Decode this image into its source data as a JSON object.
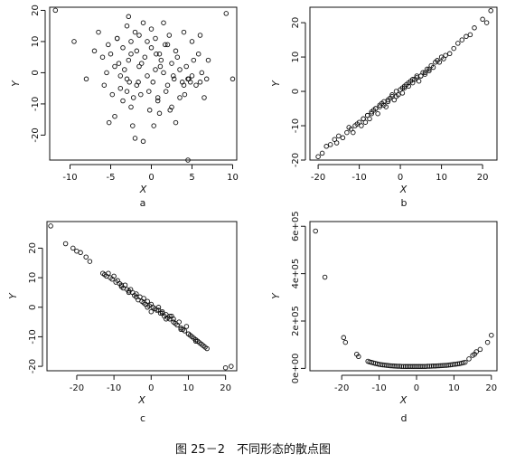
{
  "caption": "图 25－2　不同形态的散点图",
  "chart_data": [
    {
      "type": "scatter",
      "panel_label": "a",
      "xlabel": "X",
      "ylabel": "Y",
      "xlim": [
        -12.5,
        10.5
      ],
      "ylim": [
        -28,
        21
      ],
      "xticks": [
        -10,
        -5,
        0,
        5,
        10
      ],
      "yticks": [
        -20,
        -10,
        0,
        10,
        20
      ],
      "ytick_labels": [
        "-20",
        "-10",
        "0",
        "10",
        "20"
      ],
      "x": [
        -11.8,
        -9.5,
        -8.0,
        -7.0,
        -6.5,
        -6.0,
        -5.8,
        -5.5,
        -5.3,
        -5.0,
        -4.8,
        -4.5,
        -4.5,
        -4.2,
        -4.0,
        -3.8,
        -3.5,
        -3.5,
        -3.3,
        -3.0,
        -3.0,
        -2.8,
        -2.8,
        -2.5,
        -2.5,
        -2.5,
        -2.3,
        -2.0,
        -2.0,
        -1.8,
        -1.8,
        -1.5,
        -1.5,
        -1.3,
        -1.0,
        -1.0,
        -0.8,
        -0.5,
        -0.5,
        -0.3,
        0.0,
        0.0,
        0.2,
        0.3,
        0.5,
        0.5,
        0.8,
        1.0,
        1.0,
        1.2,
        1.5,
        1.5,
        1.8,
        2.0,
        2.0,
        2.2,
        2.5,
        2.5,
        2.8,
        3.0,
        3.0,
        3.2,
        3.5,
        3.5,
        3.8,
        4.0,
        4.0,
        4.3,
        4.5,
        4.5,
        4.8,
        5.0,
        5.0,
        5.2,
        5.5,
        5.8,
        6.0,
        6.0,
        6.2,
        6.5,
        7.0,
        9.2,
        10.0,
        -3.0,
        -2.2,
        -1.2,
        0.6,
        1.7,
        2.7,
        -4.2,
        -0.2,
        1.1,
        4.6,
        4.1,
        -2.7,
        -1.6,
        0.8,
        2.3,
        -5.2,
        -3.8,
        6.8
      ],
      "y": [
        20,
        10,
        -2,
        7,
        13,
        5,
        -4,
        0,
        9,
        6,
        -7,
        -14,
        2,
        11,
        3,
        -5,
        8,
        -9,
        1,
        15,
        -2,
        18,
        4,
        -11,
        10,
        6,
        -17,
        13,
        -21,
        7,
        -4,
        12,
        2,
        -7,
        16,
        -22,
        5,
        10,
        -1,
        -6,
        14,
        8,
        -3,
        -17,
        11,
        1,
        -9,
        6,
        -13,
        4,
        16,
        0,
        -6,
        9,
        -4,
        12,
        -11,
        3,
        -2,
        7,
        -16,
        5,
        -8,
        1,
        -3,
        13,
        -4,
        2,
        -28,
        -2,
        -3,
        10,
        -1,
        4,
        -4,
        6,
        -3,
        12,
        0,
        -8,
        4,
        19,
        -2,
        -6,
        -8,
        3,
        6,
        9,
        -1,
        11,
        -12,
        2,
        -2,
        -7,
        -3,
        -3,
        -8,
        -12,
        -16,
        -1,
        -2
      ]
    },
    {
      "type": "scatter",
      "panel_label": "b",
      "xlabel": "X",
      "ylabel": "Y",
      "xlim": [
        -22,
        23.5
      ],
      "ylim": [
        -20,
        24.5
      ],
      "xticks": [
        -20,
        -10,
        0,
        10,
        20
      ],
      "yticks": [
        -20,
        -10,
        0,
        10,
        20
      ],
      "ytick_labels": [
        "-20",
        "-10",
        "0",
        "10",
        "20"
      ],
      "x": [
        -20.0,
        -19.0,
        -18.0,
        -17.0,
        -16.0,
        -15.5,
        -15.0,
        -14.0,
        -13.0,
        -12.5,
        -12.0,
        -11.5,
        -11.0,
        -10.5,
        -10.0,
        -9.5,
        -9.0,
        -8.5,
        -8.0,
        -7.5,
        -7.0,
        -6.5,
        -6.0,
        -5.5,
        -5.0,
        -4.5,
        -4.0,
        -3.5,
        -3.0,
        -2.5,
        -2.0,
        -1.5,
        -1.0,
        -0.5,
        0.0,
        0.5,
        1.0,
        1.5,
        2.0,
        2.5,
        3.0,
        3.5,
        4.0,
        4.5,
        5.0,
        5.5,
        6.0,
        6.5,
        7.0,
        7.5,
        8.0,
        8.5,
        9.0,
        9.5,
        10.0,
        10.5,
        11.0,
        12.0,
        13.0,
        14.0,
        15.0,
        16.0,
        17.0,
        18.0,
        20.0,
        21.0,
        22.0,
        -9.0,
        -8.0,
        -7.0,
        -6.0,
        -3.0,
        -2.0,
        1.0,
        2.0,
        4.0,
        5.0,
        6.0,
        3.0,
        -4.0,
        -5.0,
        -1.0,
        0.5,
        7.0,
        9.0
      ],
      "y": [
        -19.0,
        -18.0,
        -16.0,
        -15.5,
        -14.0,
        -15.0,
        -13.0,
        -13.5,
        -12.0,
        -10.5,
        -11.0,
        -12.0,
        -10.0,
        -9.5,
        -9.0,
        -10.0,
        -8.0,
        -9.0,
        -7.0,
        -8.0,
        -6.5,
        -5.5,
        -5.0,
        -6.5,
        -4.5,
        -3.5,
        -3.0,
        -4.5,
        -2.5,
        -2.0,
        -1.0,
        -2.5,
        0.0,
        -1.0,
        0.5,
        -0.5,
        1.0,
        2.0,
        1.5,
        3.0,
        2.5,
        3.5,
        4.0,
        3.0,
        4.5,
        5.5,
        5.0,
        6.5,
        6.0,
        7.5,
        7.0,
        8.5,
        9.0,
        8.5,
        10.0,
        9.5,
        10.5,
        11.0,
        12.5,
        14.0,
        15.0,
        16.0,
        16.5,
        18.5,
        21.0,
        20.0,
        23.5,
        -8.0,
        -7.0,
        -6.0,
        -5.0,
        -3.0,
        -1.5,
        1.5,
        2.5,
        4.5,
        4.5,
        5.5,
        3.5,
        -4.0,
        -4.0,
        -1.5,
        1.0,
        6.5,
        9.0
      ]
    },
    {
      "type": "scatter",
      "panel_label": "c",
      "xlabel": "X",
      "ylabel": "Y",
      "xlim": [
        -28,
        23
      ],
      "ylim": [
        -21.5,
        29
      ],
      "xticks": [
        -20,
        -10,
        0,
        10,
        20
      ],
      "yticks": [
        -20,
        -10,
        0,
        10,
        20
      ],
      "ytick_labels": [
        "-20",
        "-10",
        "0",
        "10",
        "20"
      ],
      "x": [
        -27.0,
        -23.0,
        -21.0,
        -20.0,
        -19.0,
        -17.5,
        -16.5,
        -13.0,
        -12.5,
        -12.0,
        -11.5,
        -11.0,
        -10.5,
        -10.0,
        -9.5,
        -9.0,
        -8.5,
        -8.0,
        -7.5,
        -7.0,
        -6.5,
        -6.0,
        -5.5,
        -5.0,
        -4.5,
        -4.0,
        -3.5,
        -3.0,
        -2.5,
        -2.0,
        -1.5,
        -1.0,
        -0.5,
        0.0,
        0.5,
        1.0,
        1.5,
        2.0,
        2.5,
        3.0,
        3.5,
        4.0,
        4.5,
        5.0,
        5.5,
        6.0,
        6.5,
        7.0,
        7.5,
        8.0,
        8.5,
        9.0,
        9.5,
        10.0,
        10.5,
        11.0,
        11.5,
        12.0,
        12.5,
        13.0,
        13.5,
        14.0,
        14.5,
        15.0,
        20.0,
        21.5,
        -4.0,
        -2.0,
        0.0,
        2.0,
        4.0,
        6.0,
        8.0,
        10.0,
        12.0,
        -8.0,
        -6.0,
        3.0,
        5.0,
        -1.0
      ],
      "y": [
        27.5,
        21.5,
        20.0,
        19.0,
        18.5,
        17.0,
        15.5,
        11.5,
        11.0,
        10.5,
        11.5,
        10.0,
        9.5,
        10.5,
        8.5,
        9.0,
        8.0,
        7.5,
        6.5,
        7.5,
        6.0,
        5.5,
        6.0,
        5.0,
        4.0,
        4.5,
        2.5,
        3.5,
        2.0,
        3.0,
        1.0,
        2.0,
        0.5,
        1.0,
        0.0,
        -0.5,
        -1.0,
        0.0,
        -2.0,
        -1.5,
        -3.0,
        -2.5,
        -3.5,
        -4.0,
        -3.0,
        -5.0,
        -5.5,
        -6.0,
        -5.0,
        -7.0,
        -7.5,
        -8.0,
        -6.5,
        -9.0,
        -9.5,
        -10.0,
        -10.5,
        -11.0,
        -11.5,
        -12.0,
        -12.5,
        -13.0,
        -13.5,
        -14.0,
        -20.5,
        -20.0,
        3.5,
        1.5,
        -1.5,
        -1.0,
        -4.0,
        -4.0,
        -7.5,
        -9.0,
        -11.5,
        7.0,
        5.0,
        -2.0,
        -3.0,
        0.0
      ]
    },
    {
      "type": "scatter",
      "panel_label": "d",
      "xlabel": "X",
      "ylabel": "Y",
      "xlim": [
        -28.5,
        21.5
      ],
      "ylim": [
        -10000,
        620000
      ],
      "xticks": [
        -20,
        -10,
        0,
        10,
        20
      ],
      "yticks": [
        0,
        200000,
        400000,
        600000
      ],
      "ytick_labels": [
        "0e+00",
        "2e+05",
        "4e+05",
        "6e+05"
      ],
      "x": [
        -27.0,
        -24.5,
        -19.5,
        -19.0,
        -16.0,
        -15.5,
        -13.0,
        -12.5,
        -12.0,
        -11.5,
        -11.0,
        -10.5,
        -10.0,
        -9.5,
        -9.0,
        -8.5,
        -8.0,
        -7.5,
        -7.0,
        -6.5,
        -6.0,
        -5.5,
        -5.0,
        -4.5,
        -4.0,
        -3.5,
        -3.0,
        -2.5,
        -2.0,
        -1.5,
        -1.0,
        -0.5,
        0.0,
        0.5,
        1.0,
        1.5,
        2.0,
        2.5,
        3.0,
        3.5,
        4.0,
        4.5,
        5.0,
        5.5,
        6.0,
        6.5,
        7.0,
        7.5,
        8.0,
        8.5,
        9.0,
        9.5,
        10.0,
        10.5,
        11.0,
        11.5,
        12.0,
        12.5,
        13.0,
        14.0,
        15.0,
        15.5,
        16.0,
        17.0,
        19.0,
        20.0
      ],
      "y": [
        580000,
        385000,
        130000,
        110000,
        60000,
        50000,
        30000,
        27000,
        25000,
        23000,
        21000,
        19000,
        17000,
        16000,
        15000,
        14000,
        13000,
        12000,
        11000,
        10500,
        10000,
        9500,
        9000,
        9000,
        8500,
        8500,
        8000,
        8000,
        8000,
        8000,
        8000,
        8000,
        8000,
        8000,
        8000,
        8000,
        8500,
        8500,
        9000,
        9000,
        9500,
        10000,
        10000,
        10500,
        11000,
        11500,
        12000,
        12500,
        13000,
        14000,
        15000,
        16000,
        17000,
        18000,
        19000,
        20000,
        22000,
        24000,
        26000,
        40000,
        55000,
        60000,
        70000,
        80000,
        110000,
        140000
      ]
    }
  ]
}
